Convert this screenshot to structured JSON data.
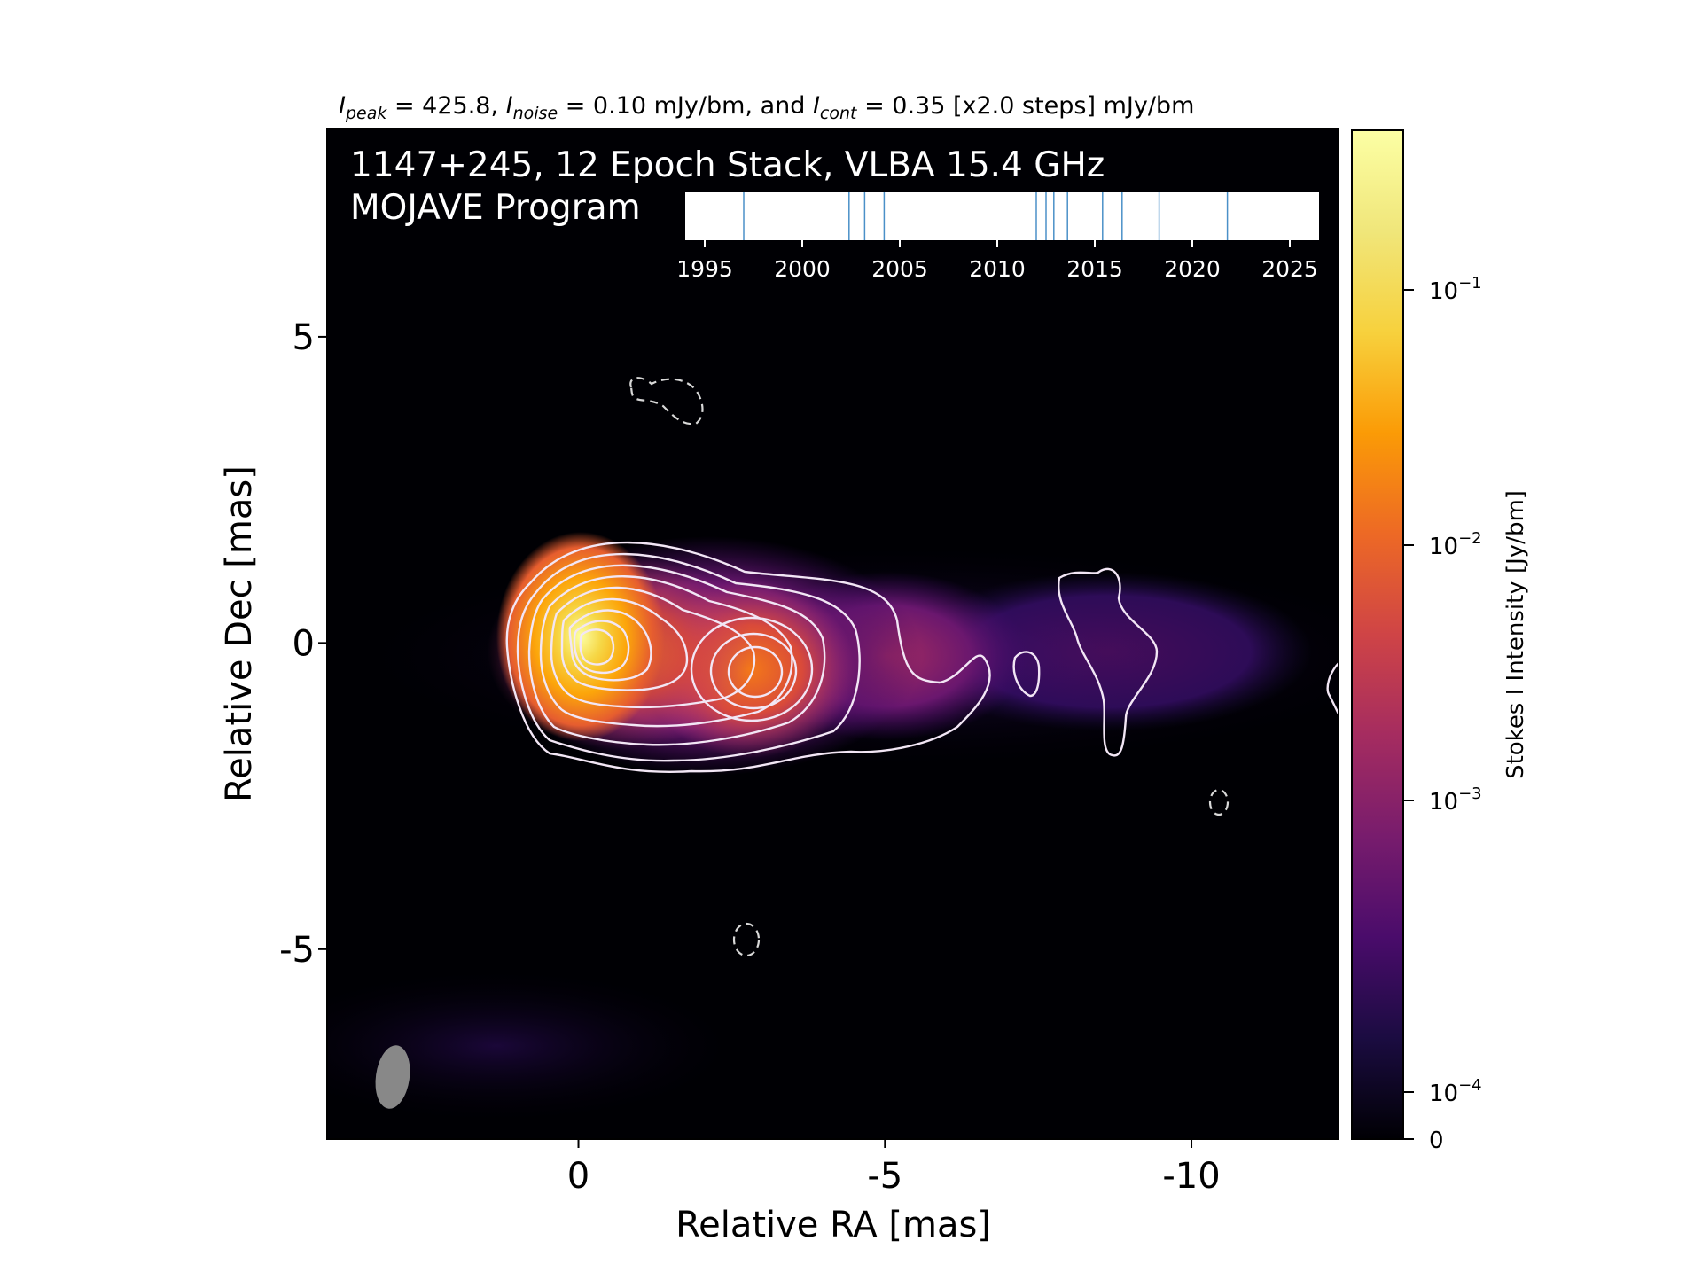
{
  "chart_data": {
    "type": "heatmap",
    "title_parts": {
      "i1": "I",
      "peak_sub": "peak",
      "peak_text": " = 425.8, ",
      "i2": "I",
      "noise_sub": "noise",
      "noise_text": " = 0.10 mJy/bm, and ",
      "i3": "I",
      "cont_sub": "cont",
      "cont_text": " = 0.35 [x2.0 steps] mJy/bm"
    },
    "overlay_line1": "1147+245, 12 Epoch Stack, VLBA 15.4 GHz",
    "overlay_line2": "MOJAVE Program",
    "xlabel": "Relative RA [mas]",
    "ylabel": "Relative Dec [mas]",
    "xlim": [
      4.1,
      -12.4
    ],
    "ylim": [
      -8.1,
      8.4
    ],
    "x_ticks": [
      0,
      -5,
      -10
    ],
    "x_tick_labels": [
      "0",
      "-5",
      "-10"
    ],
    "y_ticks": [
      5,
      0,
      -5
    ],
    "y_tick_labels": [
      "5",
      "0",
      "-5"
    ],
    "peak_position": [
      0,
      0
    ],
    "components": [
      {
        "x": 0.0,
        "y": 0.0,
        "rel_flux": 1.0
      },
      {
        "x": -2.8,
        "y": -0.5,
        "rel_flux": 0.12
      },
      {
        "x": -5.0,
        "y": -0.5,
        "rel_flux": 0.008
      },
      {
        "x": -8.7,
        "y": -0.3,
        "rel_flux": 0.0012
      }
    ],
    "beam": {
      "x": 3.0,
      "y": -7.2,
      "major_mas": 1.05,
      "minor_mas": 0.55,
      "pa_deg": -5
    },
    "colorbar": {
      "label": "Stokes I Intensity [Jy/bm]",
      "scale": "log",
      "colormap": "inferno",
      "tick_labels": [
        {
          "base": "10",
          "exp": "−1"
        },
        {
          "base": "10",
          "exp": "−2"
        },
        {
          "base": "10",
          "exp": "−3"
        },
        {
          "base": "10",
          "exp": "−4"
        }
      ],
      "zero_label": "0"
    },
    "epoch_timeline": {
      "tick_years": [
        1995,
        2000,
        2005,
        2010,
        2015,
        2020,
        2025
      ],
      "tick_labels": [
        "1995",
        "2000",
        "2005",
        "2010",
        "2015",
        "2020",
        "2025"
      ],
      "epochs": [
        1997.0,
        2002.4,
        2003.2,
        2004.2,
        2012.0,
        2012.5,
        2012.9,
        2013.6,
        2015.4,
        2016.4,
        2018.3,
        2021.8
      ],
      "line_color": "#4a90c8"
    },
    "colors": {
      "plot_background": "#000004",
      "contour_positive": "#f2e6f5",
      "contour_negative": "#d8d8d8",
      "beam_fill": "#888888",
      "overlay_text": "#ffffff"
    }
  }
}
